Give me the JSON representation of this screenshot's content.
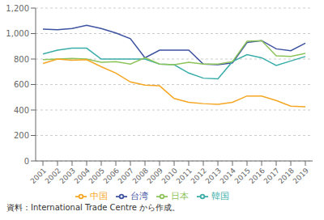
{
  "chart_data": {
    "type": "line",
    "annotations": [
      "資料：International Trade Centre から作成。"
    ],
    "x": [
      2001,
      2002,
      2003,
      2004,
      2005,
      2006,
      2007,
      2008,
      2009,
      2010,
      2011,
      2012,
      2013,
      2014,
      2015,
      2016,
      2017,
      2018,
      2019
    ],
    "series": [
      {
        "name": "台湾",
        "color": "#3d52a1",
        "values": [
          1035,
          1030,
          1040,
          1065,
          1040,
          1005,
          960,
          810,
          870,
          870,
          870,
          760,
          755,
          770,
          930,
          945,
          880,
          865,
          925
        ]
      },
      {
        "name": "韓国",
        "color": "#3aada8",
        "values": [
          840,
          870,
          885,
          885,
          800,
          800,
          800,
          800,
          760,
          755,
          690,
          650,
          645,
          780,
          835,
          810,
          750,
          785,
          820
        ]
      },
      {
        "name": "日本",
        "color": "#8dc45a",
        "values": [
          795,
          800,
          805,
          800,
          775,
          780,
          760,
          810,
          760,
          755,
          775,
          760,
          760,
          780,
          940,
          945,
          825,
          820,
          845
        ]
      },
      {
        "name": "中国",
        "color": "#f5a623",
        "values": [
          765,
          800,
          790,
          795,
          740,
          690,
          620,
          595,
          590,
          490,
          460,
          450,
          445,
          460,
          510,
          510,
          475,
          430,
          425
        ]
      }
    ],
    "xlim": [
      2000.5,
      2019.5
    ],
    "xticks": [
      2001,
      2002,
      2003,
      2004,
      2005,
      2006,
      2007,
      2008,
      2009,
      2010,
      2011,
      2012,
      2013,
      2014,
      2015,
      2016,
      2017,
      2018,
      2019
    ],
    "ylim": [
      0,
      1200
    ],
    "yticks": [
      0,
      200,
      400,
      600,
      800,
      {
        "value": 1000,
        "label": "1,000"
      },
      {
        "value": 1200,
        "label": "1,200"
      }
    ],
    "grid": true,
    "legend": "bottom"
  }
}
